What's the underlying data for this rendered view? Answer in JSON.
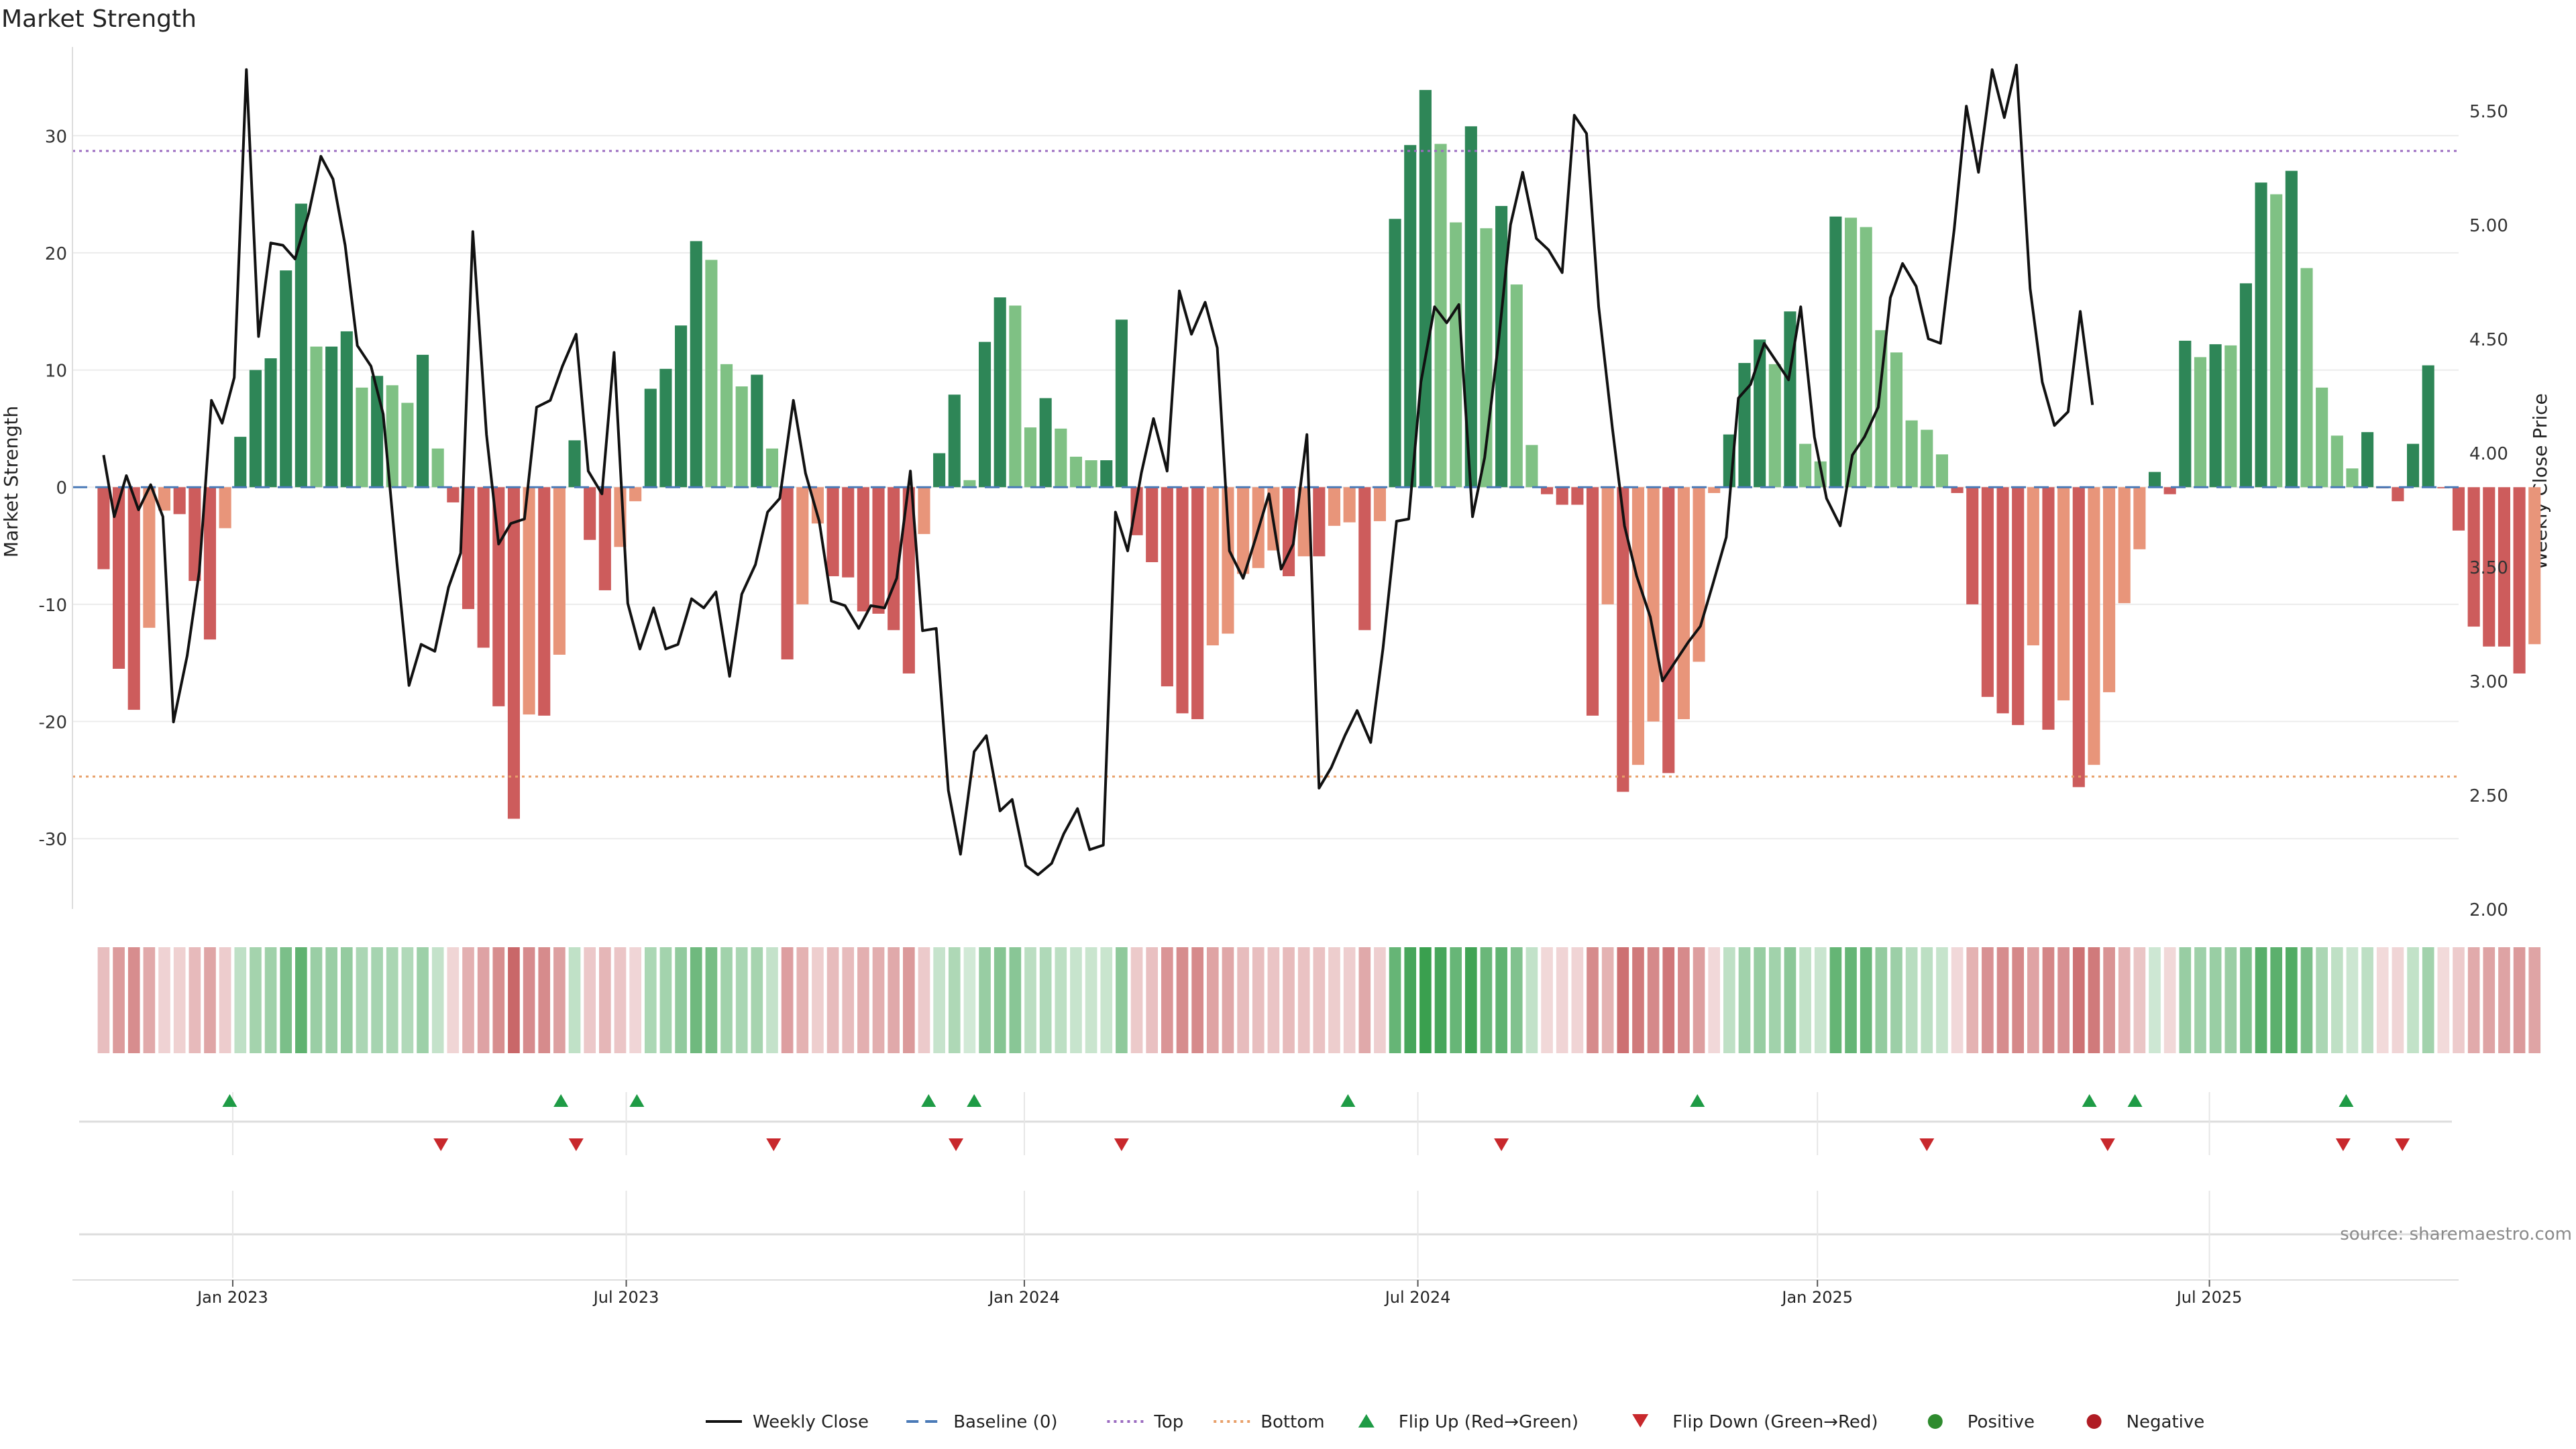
{
  "chart_data": {
    "type": "bar+line",
    "title": "Market Strength",
    "ylabel_left": "Market Strength",
    "ylabel_right": "Weekly Close Price",
    "ylim_left": [
      -36,
      37
    ],
    "ylim_right": [
      2.0,
      5.75
    ],
    "yticks_left": [
      -30,
      -20,
      -10,
      0,
      10,
      20,
      30
    ],
    "yticks_right": [
      2.0,
      2.5,
      3.0,
      3.5,
      4.0,
      4.5,
      5.0,
      5.5
    ],
    "yticklabels_right": [
      "2.00",
      "2.50",
      "3.00",
      "3.50",
      "4.00",
      "4.50",
      "5.00",
      "5.50"
    ],
    "top_threshold": 28.7,
    "bottom_threshold": -24.7,
    "grid": true,
    "x_start_week": -10.55,
    "x_end_week": 146.5,
    "x_ticks": [
      {
        "label": "Jan 2023",
        "week": 0
      },
      {
        "label": "Jul 2023",
        "week": 25.9
      },
      {
        "label": "Jan 2024",
        "week": 52.1
      },
      {
        "label": "Jul 2024",
        "week": 78
      },
      {
        "label": "Jan 2025",
        "week": 104.3
      },
      {
        "label": "Jul 2025",
        "week": 130.1
      }
    ],
    "strength_start_week": -8.5,
    "strength": [
      -7,
      -15.5,
      -19,
      -12,
      -2,
      -2.3,
      -8,
      -13,
      -3.5,
      4.3,
      10,
      11,
      18.5,
      24.2,
      12,
      12,
      13.3,
      8.5,
      9.5,
      8.7,
      7.2,
      11.3,
      3.3,
      -1.3,
      -10.4,
      -13.7,
      -18.7,
      -28.3,
      -19.4,
      -19.5,
      -14.3,
      4,
      -4.5,
      -8.8,
      -5.1,
      -1.2,
      8.4,
      10.1,
      13.8,
      21,
      19.4,
      10.5,
      8.6,
      9.6,
      3.3,
      -14.7,
      -10,
      -3.1,
      -7.6,
      -7.7,
      -10.6,
      -10.8,
      -12.2,
      -15.9,
      -4,
      2.9,
      7.9,
      0.6,
      12.4,
      16.2,
      15.5,
      5.1,
      7.6,
      5,
      2.6,
      2.3,
      2.3,
      14.3,
      -4.1,
      -6.4,
      -17,
      -19.3,
      -19.8,
      -13.5,
      -12.5,
      -7.4,
      -6.9,
      -5.4,
      -7.6,
      -5.9,
      -5.9,
      -3.3,
      -3,
      -12.2,
      -2.9,
      22.9,
      29.2,
      33.9,
      29.3,
      22.6,
      30.8,
      22.1,
      24,
      17.3,
      3.6,
      -0.6,
      -1.5,
      -1.5,
      -19.5,
      -10,
      -26,
      -23.7,
      -20,
      -24.4,
      -19.8,
      -14.9,
      -0.5,
      4.5,
      10.6,
      12.6,
      10.5,
      15,
      3.7,
      2.2,
      23.1,
      23,
      22.2,
      13.4,
      11.5,
      5.7,
      4.9,
      2.8,
      -0.5,
      -10,
      -17.9,
      -19.3,
      -20.3,
      -13.5,
      -20.7,
      -18.2,
      -25.6,
      -23.7,
      -17.5,
      -9.9,
      -5.3,
      1.3,
      -0.6,
      12.5,
      11.1,
      12.2,
      12.1,
      17.4,
      26,
      25,
      27,
      18.7,
      8.5,
      4.4,
      1.6,
      4.7,
      -0.1,
      -1.2,
      3.7,
      10.4,
      -0.1,
      -3.7,
      -11.9,
      -13.6,
      -13.6,
      -15.9,
      -13.4
    ],
    "price_points": [
      [
        -8.5,
        3.99
      ],
      [
        -7.8,
        3.72
      ],
      [
        -7.0,
        3.9
      ],
      [
        -6.2,
        3.75
      ],
      [
        -5.4,
        3.86
      ],
      [
        -4.6,
        3.72
      ],
      [
        -3.9,
        2.82
      ],
      [
        -3.0,
        3.11
      ],
      [
        -2.2,
        3.48
      ],
      [
        -1.4,
        4.23
      ],
      [
        -0.7,
        4.13
      ],
      [
        0.1,
        4.33
      ],
      [
        0.9,
        5.68
      ],
      [
        1.7,
        4.51
      ],
      [
        2.5,
        4.92
      ],
      [
        3.3,
        4.91
      ],
      [
        4.1,
        4.85
      ],
      [
        5.0,
        5.05
      ],
      [
        5.8,
        5.3
      ],
      [
        6.6,
        5.2
      ],
      [
        7.4,
        4.91
      ],
      [
        8.2,
        4.47
      ],
      [
        9.1,
        4.38
      ],
      [
        9.9,
        4.17
      ],
      [
        10.8,
        3.52
      ],
      [
        11.6,
        2.98
      ],
      [
        12.4,
        3.16
      ],
      [
        13.3,
        3.13
      ],
      [
        14.2,
        3.41
      ],
      [
        15.0,
        3.56
      ],
      [
        15.8,
        4.97
      ],
      [
        16.7,
        4.08
      ],
      [
        17.5,
        3.6
      ],
      [
        18.3,
        3.69
      ],
      [
        19.2,
        3.71
      ],
      [
        20.0,
        4.2
      ],
      [
        20.9,
        4.23
      ],
      [
        21.7,
        4.38
      ],
      [
        22.6,
        4.52
      ],
      [
        23.4,
        3.92
      ],
      [
        24.3,
        3.82
      ],
      [
        25.1,
        4.44
      ],
      [
        26.0,
        3.34
      ],
      [
        26.8,
        3.14
      ],
      [
        27.7,
        3.32
      ],
      [
        28.5,
        3.14
      ],
      [
        29.3,
        3.16
      ],
      [
        30.2,
        3.36
      ],
      [
        31.0,
        3.32
      ],
      [
        31.8,
        3.39
      ],
      [
        32.7,
        3.02
      ],
      [
        33.5,
        3.38
      ],
      [
        34.4,
        3.51
      ],
      [
        35.2,
        3.74
      ],
      [
        36.0,
        3.8
      ],
      [
        36.9,
        4.23
      ],
      [
        37.7,
        3.91
      ],
      [
        38.6,
        3.7
      ],
      [
        39.4,
        3.35
      ],
      [
        40.3,
        3.33
      ],
      [
        41.2,
        3.23
      ],
      [
        42.0,
        3.33
      ],
      [
        42.9,
        3.32
      ],
      [
        43.7,
        3.45
      ],
      [
        44.6,
        3.92
      ],
      [
        45.4,
        3.22
      ],
      [
        46.3,
        3.23
      ],
      [
        47.1,
        2.52
      ],
      [
        47.9,
        2.24
      ],
      [
        48.8,
        2.69
      ],
      [
        49.6,
        2.76
      ],
      [
        50.5,
        2.43
      ],
      [
        51.3,
        2.48
      ],
      [
        52.2,
        2.19
      ],
      [
        53.0,
        2.15
      ],
      [
        53.9,
        2.2
      ],
      [
        54.7,
        2.33
      ],
      [
        55.6,
        2.44
      ],
      [
        56.4,
        2.26
      ],
      [
        57.3,
        2.28
      ],
      [
        58.1,
        3.74
      ],
      [
        58.9,
        3.57
      ],
      [
        59.8,
        3.91
      ],
      [
        60.6,
        4.15
      ],
      [
        61.5,
        3.92
      ],
      [
        62.3,
        4.71
      ],
      [
        63.1,
        4.52
      ],
      [
        64.0,
        4.66
      ],
      [
        64.8,
        4.46
      ],
      [
        65.6,
        3.57
      ],
      [
        66.5,
        3.45
      ],
      [
        67.3,
        3.62
      ],
      [
        68.2,
        3.82
      ],
      [
        69.0,
        3.49
      ],
      [
        69.8,
        3.6
      ],
      [
        70.7,
        4.08
      ],
      [
        71.5,
        2.53
      ],
      [
        72.3,
        2.62
      ],
      [
        73.2,
        2.76
      ],
      [
        74.0,
        2.87
      ],
      [
        74.9,
        2.73
      ],
      [
        75.7,
        3.14
      ],
      [
        76.6,
        3.7
      ],
      [
        77.4,
        3.71
      ],
      [
        78.2,
        4.31
      ],
      [
        79.1,
        4.64
      ],
      [
        79.9,
        4.57
      ],
      [
        80.7,
        4.65
      ],
      [
        81.6,
        3.72
      ],
      [
        82.4,
        3.98
      ],
      [
        83.3,
        4.48
      ],
      [
        84.1,
        5.0
      ],
      [
        84.9,
        5.23
      ],
      [
        85.8,
        4.94
      ],
      [
        86.6,
        4.89
      ],
      [
        87.5,
        4.79
      ],
      [
        88.3,
        5.48
      ],
      [
        89.1,
        5.4
      ],
      [
        89.9,
        4.64
      ],
      [
        90.8,
        4.11
      ],
      [
        91.6,
        3.68
      ],
      [
        92.4,
        3.46
      ],
      [
        93.3,
        3.28
      ],
      [
        94.1,
        3.0
      ],
      [
        94.9,
        3.08
      ],
      [
        95.8,
        3.17
      ],
      [
        96.6,
        3.24
      ],
      [
        97.4,
        3.42
      ],
      [
        98.3,
        3.63
      ],
      [
        99.1,
        4.24
      ],
      [
        99.9,
        4.3
      ],
      [
        100.8,
        4.48
      ],
      [
        101.6,
        4.4
      ],
      [
        102.4,
        4.32
      ],
      [
        103.2,
        4.64
      ],
      [
        104.1,
        4.07
      ],
      [
        104.9,
        3.8
      ],
      [
        105.8,
        3.68
      ],
      [
        106.6,
        3.99
      ],
      [
        107.4,
        4.07
      ],
      [
        108.3,
        4.2
      ],
      [
        109.1,
        4.68
      ],
      [
        109.9,
        4.83
      ],
      [
        110.8,
        4.73
      ],
      [
        111.6,
        4.5
      ],
      [
        112.4,
        4.48
      ],
      [
        113.3,
        4.98
      ],
      [
        114.1,
        5.52
      ],
      [
        114.9,
        5.23
      ],
      [
        115.8,
        5.68
      ],
      [
        116.6,
        5.47
      ],
      [
        117.4,
        5.7
      ],
      [
        118.3,
        4.72
      ],
      [
        119.1,
        4.31
      ],
      [
        119.9,
        4.12
      ],
      [
        120.8,
        4.18
      ],
      [
        121.6,
        4.62
      ],
      [
        122.4,
        4.21
      ]
    ],
    "flip_up_weeks": [
      -0.2,
      21.6,
      26.6,
      45.8,
      48.8,
      73.4,
      96.4,
      122.2,
      125.2,
      139.1
    ],
    "flip_down_weeks": [
      13.7,
      22.6,
      35.6,
      47.6,
      58.5,
      83.5,
      111.5,
      123.4,
      138.9,
      142.8
    ],
    "grid_vlines_weeks": [
      0,
      25.9,
      52.1,
      78,
      104.3,
      130.1
    ],
    "annotation": "source: sharemaestro.com",
    "legend": {
      "placement": "bottom-center",
      "entries": [
        {
          "label": "Weekly Close",
          "kind": "line-solid",
          "color": "#111111"
        },
        {
          "label": "Baseline (0)",
          "kind": "line-dashed",
          "color": "#4a7ab7"
        },
        {
          "label": "Top",
          "kind": "line-dotted",
          "color": "#9b6bc0"
        },
        {
          "label": "Bottom",
          "kind": "line-dotted",
          "color": "#e8a06a"
        },
        {
          "label": "Flip Up (Red→Green)",
          "kind": "triangle-up",
          "color": "#1e9b45"
        },
        {
          "label": "Flip Down (Green→Red)",
          "kind": "triangle-down",
          "color": "#c8282c"
        },
        {
          "label": "Positive",
          "kind": "dot",
          "color": "#2e8b2e"
        },
        {
          "label": "Negative",
          "kind": "dot",
          "color": "#b01c24"
        }
      ]
    },
    "colors": {
      "pos_strong": "#2e8657",
      "pos_weak": "#7fc184",
      "neg_strong": "#cd5c5c",
      "neg_weak": "#e8957a",
      "price_line": "#111111",
      "baseline": "#4a7ab7",
      "top_line": "#9b6bc0",
      "bottom_line": "#e8a06a",
      "flip_up": "#1e9b45",
      "flip_down": "#c8282c",
      "grid": "#ececec"
    }
  }
}
